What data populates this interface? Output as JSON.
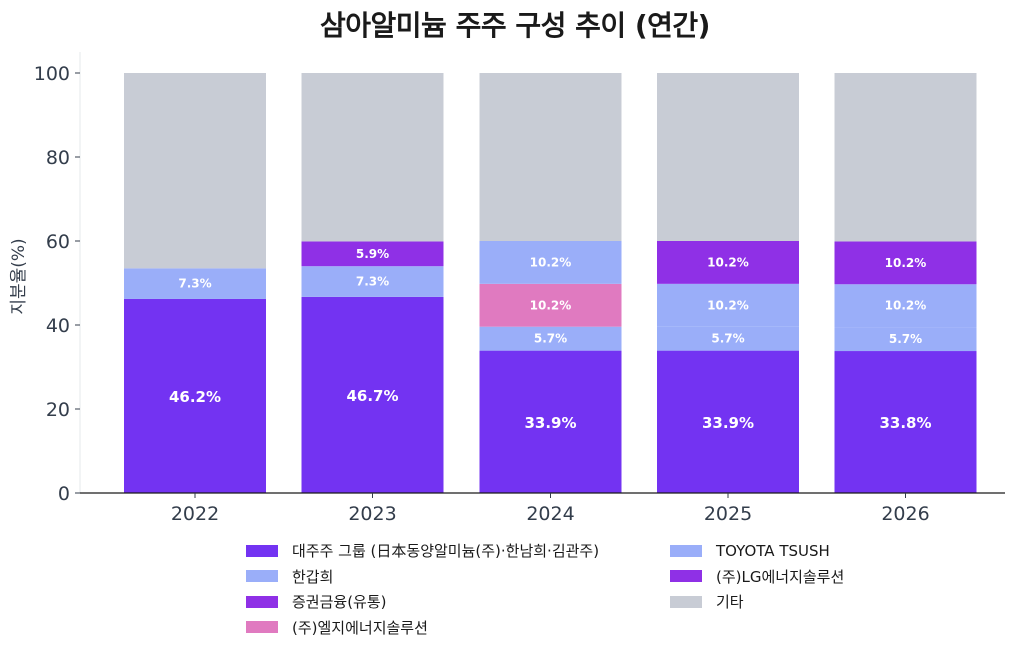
{
  "chart_data": {
    "type": "bar",
    "stacked": true,
    "title": "삼아알미늄 주주 구성 추이 (연간)",
    "ylabel": "지분율(%)",
    "xlabel": "",
    "ylim": [
      0,
      105
    ],
    "yticks": [
      0,
      20,
      40,
      60,
      80,
      100
    ],
    "categories": [
      "2022",
      "2023",
      "2024",
      "2025",
      "2026"
    ],
    "series": [
      {
        "name": "대주주 그룹 (日本동양알미늄(주)·한남희·김관주)",
        "color": "#7333f2",
        "values": [
          46.2,
          46.7,
          33.9,
          33.9,
          33.8
        ],
        "labels": [
          "46.2%",
          "46.7%",
          "33.9%",
          "33.9%",
          "33.8%"
        ]
      },
      {
        "name": "TOYOTA TSUSH",
        "color": "#9aaef9",
        "values": [
          0,
          0,
          5.7,
          5.7,
          5.7
        ],
        "labels": [
          "",
          "",
          "5.7%",
          "5.7%",
          "5.7%"
        ]
      },
      {
        "name": "한갑희",
        "color": "#9aaef9",
        "values": [
          7.3,
          7.3,
          0,
          0,
          0
        ],
        "labels": [
          "7.3%",
          "7.3%",
          "",
          "",
          ""
        ]
      },
      {
        "name": "(주)엘지에너지솔루션",
        "color": "#e07ac0",
        "values": [
          0,
          0,
          10.2,
          0,
          0
        ],
        "labels": [
          "",
          "",
          "10.2%",
          "",
          ""
        ]
      },
      {
        "name": "(주)LG에너지솔루션",
        "color": "#8f30e6",
        "values": [
          0,
          0,
          0,
          10.2,
          10.2
        ],
        "labels": [
          "",
          "",
          "",
          "10.2%",
          "10.2%"
        ]
      },
      {
        "name": "증권금융(유통)",
        "color": "#8f30e6",
        "values": [
          0,
          5.9,
          0,
          0,
          0
        ],
        "labels": [
          "",
          "5.9%",
          "",
          "",
          ""
        ]
      },
      {
        "name": "기타",
        "color": "#c8ccd5",
        "values": [
          46.5,
          40.1,
          40.3,
          50.2,
          50.3
        ],
        "labels": [
          "",
          "",
          "",
          "",
          ""
        ]
      }
    ],
    "segment_overrides": {
      "2024": {
        "top_blue_label": "10.2%",
        "top_blue_value": 10.2
      }
    },
    "legend_position": "bottom",
    "grid": false
  },
  "legend": {
    "col1": [
      {
        "label": "대주주 그룹 (日本동양알미늄(주)·한남희·김관주)",
        "color": "#7333f2"
      },
      {
        "label": "한갑희",
        "color": "#9aaef9"
      },
      {
        "label": "증권금융(유통)",
        "color": "#8f30e6"
      },
      {
        "label": "(주)엘지에너지솔루션",
        "color": "#e07ac0"
      }
    ],
    "col2": [
      {
        "label": "TOYOTA TSUSH",
        "color": "#9aaef9"
      },
      {
        "label": "(주)LG에너지솔루션",
        "color": "#8f30e6"
      },
      {
        "label": "기타",
        "color": "#c8ccd5"
      }
    ]
  }
}
